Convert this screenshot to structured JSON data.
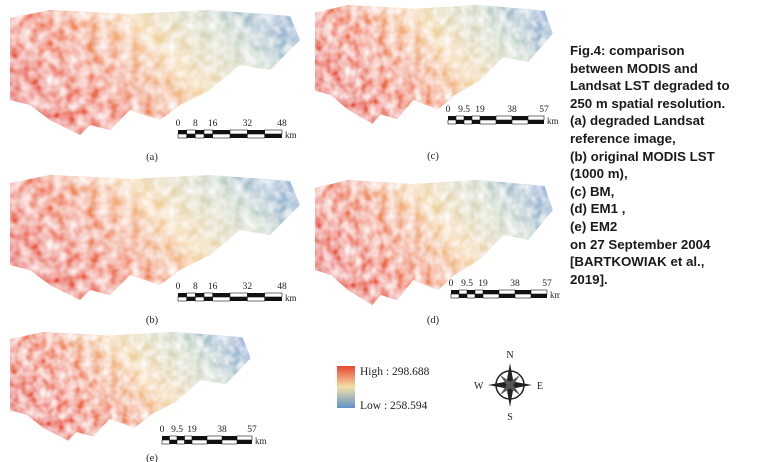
{
  "panels": [
    {
      "label": "(a)",
      "scale_ticks": [
        "0",
        "8",
        "16",
        "32",
        "48"
      ],
      "scale_unit": "km"
    },
    {
      "label": "(c)",
      "scale_ticks": [
        "0",
        "9.5",
        "19",
        "38",
        "57"
      ],
      "scale_unit": "km"
    },
    {
      "label": "(b)",
      "scale_ticks": [
        "0",
        "8",
        "16",
        "32",
        "48"
      ],
      "scale_unit": "km"
    },
    {
      "label": "(d)",
      "scale_ticks": [
        "0",
        "9.5",
        "19",
        "38",
        "57"
      ],
      "scale_unit": "km"
    },
    {
      "label": "(e)",
      "scale_ticks": [
        "0",
        "9.5",
        "19",
        "38",
        "57"
      ],
      "scale_unit": "km"
    }
  ],
  "legend": {
    "high": "High : 298.688",
    "low": "Low : 258.594"
  },
  "compass": {
    "n": "N",
    "s": "S",
    "e": "E",
    "w": "W"
  },
  "caption": [
    "Fig.4: comparison",
    "between MODIS and",
    "Landsat LST degraded to",
    "250 m spatial resolution.",
    "(a) degraded Landsat",
    "reference image,",
    "(b) original MODIS LST",
    "(1000 m),",
    "(c) BM,",
    "(d) EM1 ,",
    "(e) EM2",
    "on 27 September 2004",
    "[BARTKOWIAK et al.,",
    "2019]."
  ]
}
